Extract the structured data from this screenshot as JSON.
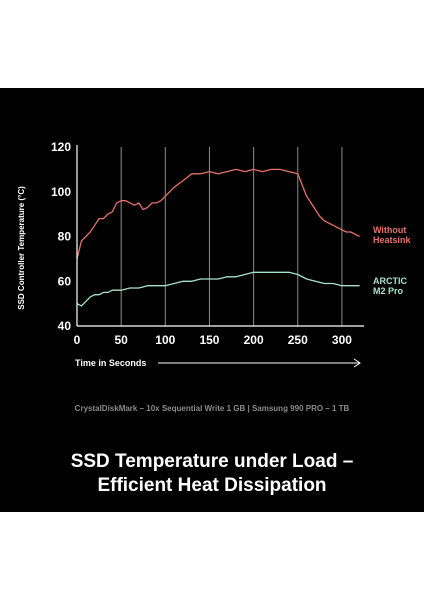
{
  "page": {
    "title_line1": "SSD Temperature under Load –",
    "title_line2": "Efficient Heat Dissipation",
    "subtitle": "CrystalDiskMark – 10x Sequential Write 1 GB | Samsung 990 PRO – 1 TB"
  },
  "chart_data": {
    "type": "line",
    "xlabel": "Time in Seconds",
    "ylabel": "SSD Controller Temperature (°C)",
    "xlim": [
      0,
      325
    ],
    "ylim": [
      40,
      120
    ],
    "x_ticks": [
      "0",
      "50",
      "100",
      "150",
      "200",
      "250",
      "300"
    ],
    "y_ticks": [
      "40",
      "60",
      "80",
      "100",
      "120"
    ],
    "grid": "vertical",
    "legend": "right",
    "series": [
      {
        "name_line1": "Without",
        "name_line2": "Heatsink",
        "color": "#e8706a",
        "x": [
          0,
          5,
          10,
          15,
          20,
          25,
          30,
          35,
          40,
          45,
          50,
          55,
          60,
          65,
          70,
          75,
          80,
          85,
          90,
          95,
          100,
          110,
          120,
          130,
          140,
          150,
          160,
          170,
          180,
          190,
          200,
          210,
          220,
          230,
          240,
          250,
          255,
          260,
          265,
          270,
          275,
          280,
          285,
          290,
          295,
          300,
          305,
          310,
          315,
          320
        ],
        "values": [
          70,
          78,
          80,
          82,
          85,
          88,
          88,
          90,
          91,
          95,
          96,
          96,
          95,
          94,
          95,
          92,
          93,
          95,
          95,
          96,
          98,
          102,
          105,
          108,
          108,
          109,
          108,
          109,
          110,
          109,
          110,
          109,
          110,
          110,
          109,
          108,
          103,
          98,
          95,
          92,
          89,
          87,
          86,
          85,
          84,
          83,
          82,
          82,
          81,
          80
        ]
      },
      {
        "name_line1": "ARCTIC",
        "name_line2": "M2 Pro",
        "color": "#a6e3cf",
        "x": [
          0,
          5,
          10,
          15,
          20,
          25,
          30,
          35,
          40,
          45,
          50,
          60,
          70,
          80,
          90,
          100,
          110,
          120,
          130,
          140,
          150,
          160,
          170,
          180,
          190,
          200,
          210,
          220,
          230,
          240,
          250,
          260,
          270,
          280,
          290,
          300,
          310,
          320
        ],
        "values": [
          50,
          49,
          51,
          53,
          54,
          54,
          55,
          55,
          56,
          56,
          56,
          57,
          57,
          58,
          58,
          58,
          59,
          60,
          60,
          61,
          61,
          61,
          62,
          62,
          63,
          64,
          64,
          64,
          64,
          64,
          63,
          61,
          60,
          59,
          59,
          58,
          58,
          58
        ]
      }
    ]
  }
}
